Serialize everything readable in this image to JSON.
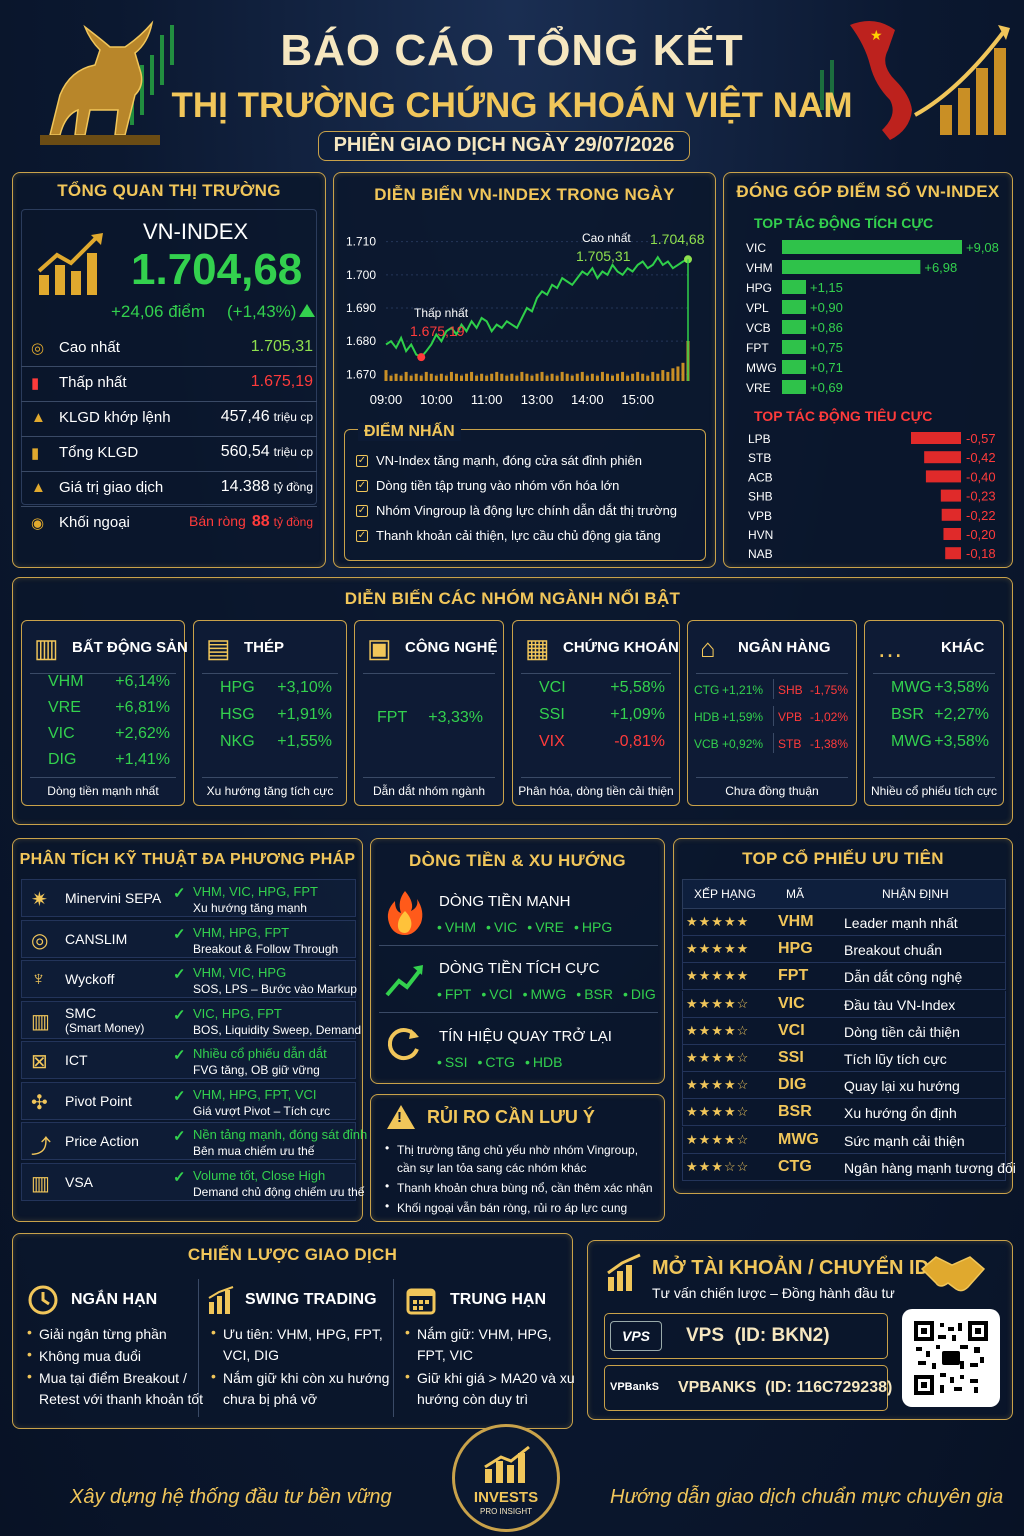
{
  "header": {
    "title1": "BÁO CÁO TỔNG KẾT",
    "title2": "THỊ TRƯỜNG CHỨNG KHOÁN VIỆT NAM",
    "session": "PHIÊN GIAO DỊCH NGÀY 29/07/2026"
  },
  "overview": {
    "title": "TỔNG QUAN THỊ TRƯỜNG",
    "index_name": "VN-INDEX",
    "index_value": "1.704,68",
    "change_pts": "+24,06 điểm",
    "change_pct": "(+1,43%)",
    "rows": [
      {
        "label": "Cao nhất",
        "value": "1.705,31",
        "unit": "",
        "color": "#8fe04e"
      },
      {
        "label": "Thấp nhất",
        "value": "1.675,19",
        "unit": "",
        "color": "#ff3b3b"
      },
      {
        "label": "KLGD khớp lệnh",
        "value": "457,46",
        "unit": "triệu cp",
        "color": "#ffffff"
      },
      {
        "label": "Tổng KLGD",
        "value": "560,54",
        "unit": "triệu cp",
        "color": "#ffffff"
      },
      {
        "label": "Giá trị giao dịch",
        "value": "14.388",
        "unit": "tỷ đồng",
        "color": "#ffffff"
      },
      {
        "label": "Khối ngoại",
        "prefix": "Bán ròng",
        "value": "88",
        "unit": "tỷ đồng",
        "color": "#ff3b3b"
      }
    ]
  },
  "intraday": {
    "title": "DIỄN BIẾN VN-INDEX TRONG NGÀY",
    "high_label": "Cao nhất",
    "high_value": "1.705,31",
    "close_value": "1.704,68",
    "low_label": "Thấp nhất",
    "low_value": "1.675,19",
    "highlights_title": "ĐIỂM NHẤN",
    "highlights": [
      "VN-Index tăng mạnh, đóng cửa sát đỉnh phiên",
      "Dòng tiền tập trung vào nhóm vốn hóa lớn",
      "Nhóm Vingroup là động lực chính dẫn dắt thị trường",
      "Thanh khoản cải thiện, lực cầu chủ động gia tăng"
    ]
  },
  "chart_data": [
    {
      "type": "line",
      "title": "DIỄN BIẾN VN-INDEX TRONG NGÀY",
      "x_ticks": [
        "09:00",
        "10:00",
        "11:00",
        "13:00",
        "14:00",
        "15:00"
      ],
      "y_ticks": [
        "1.710",
        "1.700",
        "1.690",
        "1.680",
        "1.670"
      ],
      "ylim": [
        1668,
        1712
      ],
      "x": [
        0,
        0.1,
        0.2,
        0.3,
        0.4,
        0.5,
        0.6,
        0.7,
        0.8,
        0.9,
        1.0,
        1.1,
        1.2,
        1.3,
        1.4,
        1.5,
        1.6,
        1.7,
        1.8,
        1.9,
        2.0,
        2.1,
        2.2,
        2.3,
        2.4,
        2.5,
        2.6,
        2.7,
        2.8,
        2.9,
        3.0,
        3.1,
        3.2,
        3.3,
        3.4,
        3.5,
        3.6,
        3.7,
        3.8,
        3.9,
        4.0,
        4.1,
        4.2,
        4.3,
        4.4,
        4.5,
        4.6,
        4.7,
        4.8,
        4.9,
        5.0,
        5.1,
        5.2,
        5.3,
        5.4,
        5.5,
        5.6,
        5.7,
        5.8,
        5.9,
        6.0
      ],
      "y": [
        1679,
        1680,
        1678,
        1681,
        1677,
        1679,
        1676,
        1675.19,
        1677,
        1679,
        1682,
        1680,
        1683,
        1684,
        1682,
        1685,
        1683,
        1686,
        1684,
        1687,
        1686,
        1683,
        1685,
        1684,
        1686,
        1685,
        1684,
        1687,
        1690,
        1689,
        1693,
        1695,
        1694,
        1697,
        1696,
        1699,
        1698,
        1697,
        1699,
        1701,
        1700,
        1702,
        1699,
        1701,
        1700,
        1703,
        1701,
        1700,
        1702,
        1701,
        1703,
        1704,
        1702,
        1703,
        1705.31,
        1703,
        1704,
        1702,
        1703,
        1704,
        1704.68
      ],
      "volume": [
        6,
        3,
        4,
        3,
        5,
        3,
        4,
        3,
        5,
        4,
        3,
        4,
        3,
        5,
        4,
        3,
        4,
        5,
        3,
        4,
        3,
        4,
        5,
        4,
        3,
        4,
        3,
        5,
        4,
        3,
        4,
        5,
        3,
        4,
        3,
        5,
        4,
        3,
        4,
        5,
        3,
        4,
        3,
        5,
        4,
        3,
        4,
        5,
        3,
        4,
        5,
        4,
        3,
        5,
        4,
        6,
        5,
        7,
        8,
        10,
        22
      ]
    },
    {
      "type": "bar",
      "title": "ĐÓNG GÓP ĐIỂM SỐ VN-INDEX",
      "series": [
        {
          "name": "TOP TÁC ĐỘNG TÍCH CỰC",
          "categories": [
            "VIC",
            "VHM",
            "HPG",
            "VPL",
            "VCB",
            "FPT",
            "MWG",
            "VRE"
          ],
          "values": [
            9.08,
            6.98,
            1.15,
            0.9,
            0.86,
            0.75,
            0.71,
            0.69
          ],
          "labels": [
            "+9,08",
            "+6,98",
            "+1,15",
            "+0,90",
            "+0,86",
            "+0,75",
            "+0,71",
            "+0,69"
          ]
        },
        {
          "name": "TOP TÁC ĐỘNG TIÊU CỰC",
          "categories": [
            "LPB",
            "STB",
            "ACB",
            "SHB",
            "VPB",
            "HVN",
            "NAB"
          ],
          "values": [
            -0.57,
            -0.42,
            -0.4,
            -0.23,
            -0.22,
            -0.2,
            -0.18
          ],
          "labels": [
            "-0,57",
            "-0,42",
            "-0,40",
            "-0,23",
            "-0,22",
            "-0,20",
            "-0,18"
          ]
        }
      ]
    }
  ],
  "sectors": {
    "title": "DIỄN BIẾN CÁC NHÓM NGÀNH NỔI BẬT",
    "items": [
      {
        "name": "BẤT ĐỘNG SẢN",
        "icon": "building-icon",
        "rows": [
          [
            "VHM",
            "+6,14%"
          ],
          [
            "VRE",
            "+6,81%"
          ],
          [
            "VIC",
            "+2,62%"
          ],
          [
            "DIG",
            "+1,41%"
          ]
        ],
        "note": "Dòng tiền mạnh nhất"
      },
      {
        "name": "THÉP",
        "icon": "steel-icon",
        "rows": [
          [
            "HPG",
            "+3,10%"
          ],
          [
            "HSG",
            "+1,91%"
          ],
          [
            "NKG",
            "+1,55%"
          ]
        ],
        "note": "Xu hướng tăng tích cực"
      },
      {
        "name": "CÔNG NGHỆ",
        "icon": "chip-icon",
        "rows": [
          [
            "FPT",
            "+3,33%"
          ]
        ],
        "note": "Dẫn dắt nhóm ngành"
      },
      {
        "name": "CHỨNG KHOÁN",
        "icon": "chart-icon",
        "rows": [
          [
            "VCI",
            "+5,58%"
          ],
          [
            "SSI",
            "+1,09%"
          ],
          [
            "VIX",
            "-0,81%"
          ]
        ],
        "note": "Phân hóa, dòng tiền cải thiện"
      },
      {
        "name": "NGÂN HÀNG",
        "icon": "bank-icon",
        "rows": [
          [
            "CTG",
            "+1,21%",
            "SHB",
            "-1,75%"
          ],
          [
            "HDB",
            "+1,59%",
            "VPB",
            "-1,02%"
          ],
          [
            "VCB",
            "+0,92%",
            "STB",
            "-1,38%"
          ]
        ],
        "note": "Chưa đồng thuận"
      },
      {
        "name": "KHÁC",
        "icon": "more-icon",
        "rows": [
          [
            "MWG",
            "+3,58%"
          ],
          [
            "BSR",
            "+2,27%"
          ],
          [
            "MWG",
            "+3,58%"
          ]
        ],
        "note": "Nhiều cổ phiếu tích cực"
      }
    ]
  },
  "technical": {
    "title": "PHÂN TÍCH KỸ THUẬT ĐA PHƯƠNG PHÁP",
    "items": [
      {
        "name": "Minervini SEPA",
        "sub": "",
        "stocks": "VHM, VIC, HPG, FPT",
        "desc": "Xu hướng tăng mạnh"
      },
      {
        "name": "CANSLIM",
        "sub": "",
        "stocks": "VHM, HPG, FPT",
        "desc": "Breakout & Follow Through"
      },
      {
        "name": "Wyckoff",
        "sub": "",
        "stocks": "VHM, VIC, HPG",
        "desc": "SOS, LPS – Bước vào Markup"
      },
      {
        "name": "SMC",
        "sub": "(Smart Money)",
        "stocks": "VIC, HPG, FPT",
        "desc": "BOS, Liquidity Sweep, Demand"
      },
      {
        "name": "ICT",
        "sub": "",
        "stocks": "Nhiều cổ phiếu dẫn dắt",
        "desc": "FVG tăng, OB giữ vững"
      },
      {
        "name": "Pivot Point",
        "sub": "",
        "stocks": "VHM, HPG, FPT, VCI",
        "desc": "Giá vượt Pivot – Tích cực"
      },
      {
        "name": "Price Action",
        "sub": "",
        "stocks": "Nền tảng mạnh, đóng sát đỉnh",
        "desc": "Bên mua chiếm ưu thế"
      },
      {
        "name": "VSA",
        "sub": "",
        "stocks": "Volume tốt, Close High",
        "desc": "Demand chủ động chiếm ưu thế"
      }
    ]
  },
  "flow": {
    "title": "DÒNG TIỀN & XU HƯỚNG",
    "items": [
      {
        "name": "DÒNG TIỀN MẠNH",
        "stocks": [
          "VHM",
          "VIC",
          "VRE",
          "HPG"
        ]
      },
      {
        "name": "DÒNG TIỀN TÍCH CỰC",
        "stocks": [
          "FPT",
          "VCI",
          "MWG",
          "BSR",
          "DIG"
        ]
      },
      {
        "name": "TÍN HIỆU QUAY TRỞ LẠI",
        "stocks": [
          "SSI",
          "CTG",
          "HDB"
        ]
      }
    ]
  },
  "risk": {
    "title": "RỦI RO CẦN LƯU Ý",
    "items": [
      "Thị trường tăng chủ yếu nhờ nhóm Vingroup, cần sự lan tỏa sang các nhóm khác",
      "Thanh khoản chưa bùng nổ, cần thêm xác nhận",
      "Khối ngoại vẫn bán ròng, rủi ro áp lực cung"
    ]
  },
  "top": {
    "title": "TOP CỔ PHIẾU ƯU TIÊN",
    "headers": [
      "XẾP HẠNG",
      "MÃ",
      "NHẬN ĐỊNH"
    ],
    "rows": [
      {
        "stars": "★★★★★",
        "code": "VHM",
        "note": "Leader mạnh nhất"
      },
      {
        "stars": "★★★★★",
        "code": "HPG",
        "note": "Breakout chuẩn"
      },
      {
        "stars": "★★★★★",
        "code": "FPT",
        "note": "Dẫn dắt công nghệ"
      },
      {
        "stars": "★★★★☆",
        "code": "VIC",
        "note": "Đầu tàu VN-Index"
      },
      {
        "stars": "★★★★☆",
        "code": "VCI",
        "note": "Dòng tiền cải thiện"
      },
      {
        "stars": "★★★★☆",
        "code": "SSI",
        "note": "Tích lũy tích cực"
      },
      {
        "stars": "★★★★☆",
        "code": "DIG",
        "note": "Quay lại xu hướng"
      },
      {
        "stars": "★★★★☆",
        "code": "BSR",
        "note": "Xu hướng ổn định"
      },
      {
        "stars": "★★★★☆",
        "code": "MWG",
        "note": "Sức mạnh cải thiện"
      },
      {
        "stars": "★★★☆☆",
        "code": "CTG",
        "note": "Ngân hàng mạnh tương đối"
      }
    ]
  },
  "strategy": {
    "title": "CHIẾN LƯỢC GIAO DỊCH",
    "cols": [
      {
        "name": "NGẮN HẠN",
        "items": [
          "Giải ngân từng phần",
          "Không mua đuổi",
          "Mua tại điểm Breakout / Retest với thanh khoản tốt"
        ]
      },
      {
        "name": "SWING TRADING",
        "items": [
          "Ưu tiên: VHM, HPG, FPT, VCI, DIG",
          "Nắm giữ khi còn xu hướng chưa bị phá vỡ"
        ]
      },
      {
        "name": "TRUNG HẠN",
        "items": [
          "Nắm giữ: VHM, HPG, FPT, VIC",
          "Giữ khi giá > MA20 và xu hướng còn duy trì"
        ]
      }
    ]
  },
  "account": {
    "title": "MỞ TÀI KHOẢN / CHUYỂN ID",
    "subtitle": "Tư vấn chiến lược – Đồng hành đầu tư",
    "vps_logo": "VPS",
    "vps": "VPS  (ID: BKN2)",
    "vpb_logo": "VPBankS",
    "vpb": "VPBANKS  (ID: 116C729238)"
  },
  "footer": {
    "left": "Xây dựng hệ thống đầu tư bền vững",
    "right": "Hướng dẫn giao dịch chuẩn mực chuyên gia",
    "logo1": "INVESTS",
    "logo2": "PRO INSIGHT"
  },
  "colors": {
    "gold": "#f1c65a",
    "green": "#33d14e",
    "red": "#ff3b3b",
    "bg": "#0b1830"
  }
}
